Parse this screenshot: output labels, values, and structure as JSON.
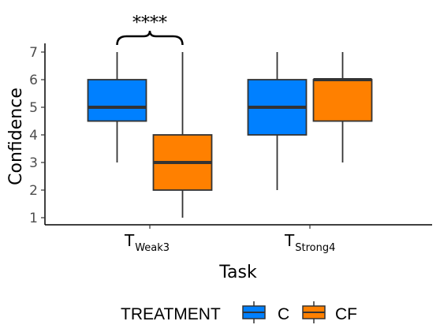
{
  "chart_data": {
    "type": "boxplot",
    "xlabel": "Task",
    "ylabel": "Confidence",
    "ylim": [
      0.7,
      7.2
    ],
    "yticks": [
      1,
      2,
      3,
      4,
      5,
      6,
      7
    ],
    "grid": false,
    "categories": [
      {
        "label": "T",
        "sub": "Weak3"
      },
      {
        "label": "T",
        "sub": "Strong4"
      }
    ],
    "series": [
      {
        "name": "C",
        "color": "#0080ff",
        "boxes": [
          {
            "min": 3,
            "q1": 4.5,
            "median": 5,
            "q3": 6,
            "max": 7
          },
          {
            "min": 2,
            "q1": 4,
            "median": 5,
            "q3": 6,
            "max": 7
          }
        ]
      },
      {
        "name": "CF",
        "color": "#ff8000",
        "boxes": [
          {
            "min": 1,
            "q1": 2,
            "median": 3,
            "q3": 4,
            "max": 7
          },
          {
            "min": 3,
            "q1": 4.5,
            "median": 6,
            "q3": 6,
            "max": 7
          }
        ]
      }
    ],
    "annotation": {
      "text": "****",
      "category": 0
    },
    "legend": {
      "title": "TREATMENT",
      "position": "bottom"
    }
  }
}
